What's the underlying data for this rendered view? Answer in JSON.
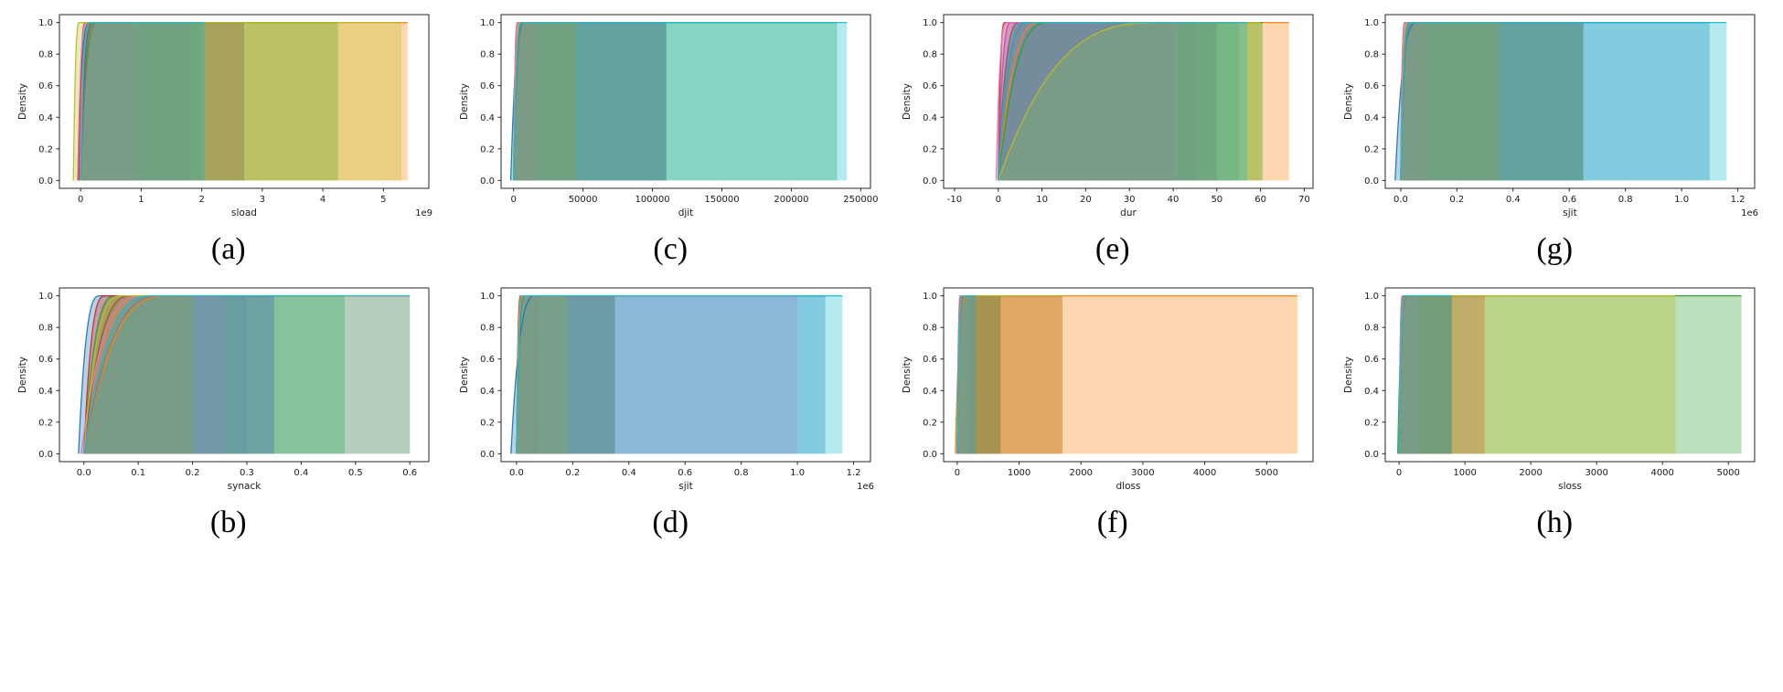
{
  "figure": {
    "background": "#ffffff",
    "spine_color": "#262626",
    "text_color": "#1a1a1a"
  },
  "palette": [
    "#1f77b4",
    "#ff7f0e",
    "#2ca02c",
    "#d62728",
    "#9467bd",
    "#8c564b",
    "#e377c2",
    "#7f7f7f",
    "#bcbd22",
    "#17becf"
  ],
  "yticks": [
    {
      "v": 0.0,
      "label": "0.0"
    },
    {
      "v": 0.2,
      "label": "0.2"
    },
    {
      "v": 0.4,
      "label": "0.4"
    },
    {
      "v": 0.6,
      "label": "0.6"
    },
    {
      "v": 0.8,
      "label": "0.8"
    },
    {
      "v": 1.0,
      "label": "1.0"
    }
  ],
  "chart_data": [
    {
      "caption": "(a)",
      "type": "area",
      "xlabel": "sload",
      "ylabel": "Density",
      "offset_label": "1e9",
      "xlim": [
        -350000000.0,
        5750000000.0
      ],
      "ylim": [
        0,
        1
      ],
      "xticks": [
        {
          "v": 0,
          "label": "0"
        },
        {
          "v": 1000000000.0,
          "label": "1"
        },
        {
          "v": 2000000000.0,
          "label": "2"
        },
        {
          "v": 3000000000.0,
          "label": "3"
        },
        {
          "v": 4000000000.0,
          "label": "4"
        },
        {
          "v": 5000000000.0,
          "label": "5"
        }
      ],
      "series": [
        {
          "color_index": 0,
          "rise": [
            -50000000.0,
            150000000.0
          ],
          "xmax": 2000000000.0
        },
        {
          "color_index": 1,
          "rise": [
            0,
            200000000.0
          ],
          "xmax": 5400000000.0
        },
        {
          "color_index": 2,
          "rise": [
            0,
            250000000.0
          ],
          "xmax": 4250000000.0
        },
        {
          "color_index": 3,
          "rise": [
            -30000000.0,
            80000000.0
          ],
          "xmax": 850000000.0
        },
        {
          "color_index": 4,
          "rise": [
            0,
            150000000.0
          ],
          "xmax": 1800000000.0
        },
        {
          "color_index": 5,
          "rise": [
            0,
            200000000.0
          ],
          "xmax": 2700000000.0
        },
        {
          "color_index": 6,
          "rise": [
            -50000000.0,
            100000000.0
          ],
          "xmax": 900000000.0
        },
        {
          "color_index": 7,
          "rise": [
            0,
            300000000.0
          ],
          "xmax": 2700000000.0
        },
        {
          "color_index": 8,
          "rise": [
            -120000000.0,
            -20000000.0
          ],
          "xmax": 5300000000.0
        },
        {
          "color_index": 9,
          "rise": [
            0,
            150000000.0
          ],
          "xmax": 2050000000.0
        }
      ]
    },
    {
      "caption": "(c)",
      "type": "area",
      "xlabel": "djit",
      "ylabel": "Density",
      "offset_label": null,
      "xlim": [
        -9000,
        257000
      ],
      "ylim": [
        0,
        1
      ],
      "xticks": [
        {
          "v": 0,
          "label": "0"
        },
        {
          "v": 50000,
          "label": "50000"
        },
        {
          "v": 100000,
          "label": "100000"
        },
        {
          "v": 150000,
          "label": "150000"
        },
        {
          "v": 200000,
          "label": "200000"
        },
        {
          "v": 250000,
          "label": "250000"
        }
      ],
      "series": [
        {
          "color_index": 0,
          "rise": [
            -2000,
            8000
          ],
          "xmax": 110000
        },
        {
          "color_index": 1,
          "rise": [
            0,
            5000
          ],
          "xmax": 45000
        },
        {
          "color_index": 2,
          "rise": [
            0,
            6000
          ],
          "xmax": 233000
        },
        {
          "color_index": 3,
          "rise": [
            0,
            3000
          ],
          "xmax": 18000
        },
        {
          "color_index": 4,
          "rise": [
            0,
            5000
          ],
          "xmax": 45000
        },
        {
          "color_index": 5,
          "rise": [
            0,
            6000
          ],
          "xmax": 110000
        },
        {
          "color_index": 6,
          "rise": [
            0,
            3000
          ],
          "xmax": 18000
        },
        {
          "color_index": 7,
          "rise": [
            0,
            8000
          ],
          "xmax": 110000
        },
        {
          "color_index": 8,
          "rise": [
            0,
            5000
          ],
          "xmax": 45000
        },
        {
          "color_index": 9,
          "rise": [
            0,
            6000
          ],
          "xmax": 240000
        }
      ]
    },
    {
      "caption": "(e)",
      "type": "area",
      "xlabel": "dur",
      "ylabel": "Density",
      "offset_label": null,
      "xlim": [
        -12.5,
        72
      ],
      "ylim": [
        0,
        1
      ],
      "xticks": [
        {
          "v": -10,
          "label": "-10"
        },
        {
          "v": 0,
          "label": "0"
        },
        {
          "v": 10,
          "label": "10"
        },
        {
          "v": 20,
          "label": "20"
        },
        {
          "v": 30,
          "label": "30"
        },
        {
          "v": 40,
          "label": "40"
        },
        {
          "v": 50,
          "label": "50"
        },
        {
          "v": 60,
          "label": "60"
        },
        {
          "v": 70,
          "label": "70"
        }
      ],
      "series": [
        {
          "color_index": 0,
          "rise": [
            0,
            6
          ],
          "xmax": 55
        },
        {
          "color_index": 1,
          "rise": [
            0,
            10
          ],
          "xmax": 66.5
        },
        {
          "color_index": 2,
          "rise": [
            0,
            12
          ],
          "xmax": 60.5
        },
        {
          "color_index": 3,
          "rise": [
            0,
            1.5
          ],
          "xmax": 40
        },
        {
          "color_index": 4,
          "rise": [
            0,
            3
          ],
          "xmax": 45
        },
        {
          "color_index": 5,
          "rise": [
            0,
            5
          ],
          "xmax": 50
        },
        {
          "color_index": 6,
          "rise": [
            -0.5,
            2
          ],
          "xmax": 41
        },
        {
          "color_index": 7,
          "rise": [
            0,
            7
          ],
          "xmax": 50
        },
        {
          "color_index": 8,
          "rise": [
            0,
            38
          ],
          "xmax": 60
        },
        {
          "color_index": 9,
          "rise": [
            0,
            6
          ],
          "xmax": 57
        }
      ]
    },
    {
      "caption": "(g)",
      "type": "area",
      "xlabel": "sjit",
      "ylabel": "Density",
      "offset_label": "1e6",
      "xlim": [
        -55000.0,
        1260000.0
      ],
      "ylim": [
        0,
        1
      ],
      "xticks": [
        {
          "v": 0,
          "label": "0.0"
        },
        {
          "v": 200000.0,
          "label": "0.2"
        },
        {
          "v": 400000.0,
          "label": "0.4"
        },
        {
          "v": 600000.0,
          "label": "0.6"
        },
        {
          "v": 800000.0,
          "label": "0.8"
        },
        {
          "v": 1000000.0,
          "label": "1.0"
        },
        {
          "v": 1200000.0,
          "label": "1.2"
        }
      ],
      "series": [
        {
          "color_index": 0,
          "rise": [
            -20000.0,
            60000.0
          ],
          "xmax": 1100000.0
        },
        {
          "color_index": 1,
          "rise": [
            0,
            25000.0
          ],
          "xmax": 350000.0
        },
        {
          "color_index": 2,
          "rise": [
            0,
            30000.0
          ],
          "xmax": 650000.0
        },
        {
          "color_index": 3,
          "rise": [
            0,
            15000.0
          ],
          "xmax": 100000.0
        },
        {
          "color_index": 4,
          "rise": [
            0,
            25000.0
          ],
          "xmax": 350000.0
        },
        {
          "color_index": 5,
          "rise": [
            0,
            30000.0
          ],
          "xmax": 650000.0
        },
        {
          "color_index": 6,
          "rise": [
            0,
            15000.0
          ],
          "xmax": 100000.0
        },
        {
          "color_index": 7,
          "rise": [
            0,
            40000.0
          ],
          "xmax": 650000.0
        },
        {
          "color_index": 8,
          "rise": [
            0,
            25000.0
          ],
          "xmax": 350000.0
        },
        {
          "color_index": 9,
          "rise": [
            0,
            30000.0
          ],
          "xmax": 1160000.0
        }
      ]
    },
    {
      "caption": "(b)",
      "type": "area",
      "xlabel": "synack",
      "ylabel": "Density",
      "offset_label": null,
      "xlim": [
        -0.045,
        0.635
      ],
      "ylim": [
        0,
        1
      ],
      "xticks": [
        {
          "v": 0.0,
          "label": "0.0"
        },
        {
          "v": 0.1,
          "label": "0.1"
        },
        {
          "v": 0.2,
          "label": "0.2"
        },
        {
          "v": 0.3,
          "label": "0.3"
        },
        {
          "v": 0.4,
          "label": "0.4"
        },
        {
          "v": 0.5,
          "label": "0.5"
        },
        {
          "v": 0.6,
          "label": "0.6"
        }
      ],
      "series": [
        {
          "color_index": 0,
          "rise": [
            -0.01,
            0.03
          ],
          "xmax": 0.35
        },
        {
          "color_index": 1,
          "rise": [
            0,
            0.16
          ],
          "xmax": 0.6
        },
        {
          "color_index": 2,
          "rise": [
            0,
            0.06
          ],
          "xmax": 0.48
        },
        {
          "color_index": 3,
          "rise": [
            0,
            0.04
          ],
          "xmax": 0.2
        },
        {
          "color_index": 4,
          "rise": [
            0,
            0.13
          ],
          "xmax": 0.35
        },
        {
          "color_index": 5,
          "rise": [
            0,
            0.09
          ],
          "xmax": 0.2
        },
        {
          "color_index": 6,
          "rise": [
            -0.005,
            0.11
          ],
          "xmax": 0.26
        },
        {
          "color_index": 7,
          "rise": [
            0,
            0.15
          ],
          "xmax": 0.3
        },
        {
          "color_index": 8,
          "rise": [
            0,
            0.07
          ],
          "xmax": 0.2
        },
        {
          "color_index": 9,
          "rise": [
            0,
            0.13
          ],
          "xmax": 0.6
        }
      ]
    },
    {
      "caption": "(d)",
      "type": "area",
      "xlabel": "sjit",
      "ylabel": "Density",
      "offset_label": "1e6",
      "xlim": [
        -55000.0,
        1260000.0
      ],
      "ylim": [
        0,
        1
      ],
      "xticks": [
        {
          "v": 0,
          "label": "0.0"
        },
        {
          "v": 200000.0,
          "label": "0.2"
        },
        {
          "v": 400000.0,
          "label": "0.4"
        },
        {
          "v": 600000.0,
          "label": "0.6"
        },
        {
          "v": 800000.0,
          "label": "0.8"
        },
        {
          "v": 1000000.0,
          "label": "1.0"
        },
        {
          "v": 1200000.0,
          "label": "1.2"
        }
      ],
      "series": [
        {
          "color_index": 0,
          "rise": [
            -20000.0,
            70000.0
          ],
          "xmax": 1100000.0
        },
        {
          "color_index": 1,
          "rise": [
            0,
            20000.0
          ],
          "xmax": 180000.0
        },
        {
          "color_index": 2,
          "rise": [
            0,
            30000.0
          ],
          "xmax": 350000.0
        },
        {
          "color_index": 3,
          "rise": [
            0,
            15000.0
          ],
          "xmax": 80000.0
        },
        {
          "color_index": 4,
          "rise": [
            0,
            20000.0
          ],
          "xmax": 180000.0
        },
        {
          "color_index": 5,
          "rise": [
            0,
            25000.0
          ],
          "xmax": 350000.0
        },
        {
          "color_index": 6,
          "rise": [
            0,
            20000.0
          ],
          "xmax": 1000000.0
        },
        {
          "color_index": 7,
          "rise": [
            0,
            30000.0
          ],
          "xmax": 350000.0
        },
        {
          "color_index": 8,
          "rise": [
            0,
            20000.0
          ],
          "xmax": 180000.0
        },
        {
          "color_index": 9,
          "rise": [
            0,
            25000.0
          ],
          "xmax": 1160000.0
        }
      ]
    },
    {
      "caption": "(f)",
      "type": "area",
      "xlabel": "dloss",
      "ylabel": "Density",
      "offset_label": null,
      "xlim": [
        -220,
        5750
      ],
      "ylim": [
        0,
        1
      ],
      "xticks": [
        {
          "v": 0,
          "label": "0"
        },
        {
          "v": 1000,
          "label": "1000"
        },
        {
          "v": 2000,
          "label": "2000"
        },
        {
          "v": 3000,
          "label": "3000"
        },
        {
          "v": 4000,
          "label": "4000"
        },
        {
          "v": 5000,
          "label": "5000"
        }
      ],
      "series": [
        {
          "color_index": 0,
          "rise": [
            0,
            80
          ],
          "xmax": 300
        },
        {
          "color_index": 1,
          "rise": [
            -30,
            150
          ],
          "xmax": 5500
        },
        {
          "color_index": 2,
          "rise": [
            0,
            100
          ],
          "xmax": 700
        },
        {
          "color_index": 3,
          "rise": [
            0,
            60
          ],
          "xmax": 1700
        },
        {
          "color_index": 4,
          "rise": [
            0,
            80
          ],
          "xmax": 300
        },
        {
          "color_index": 5,
          "rise": [
            0,
            100
          ],
          "xmax": 700
        },
        {
          "color_index": 6,
          "rise": [
            0,
            50
          ],
          "xmax": 200
        },
        {
          "color_index": 7,
          "rise": [
            0,
            120
          ],
          "xmax": 700
        },
        {
          "color_index": 8,
          "rise": [
            0,
            90
          ],
          "xmax": 1700
        },
        {
          "color_index": 9,
          "rise": [
            0,
            80
          ],
          "xmax": 300
        }
      ]
    },
    {
      "caption": "(h)",
      "type": "area",
      "xlabel": "sloss",
      "ylabel": "Density",
      "offset_label": null,
      "xlim": [
        -210,
        5400
      ],
      "ylim": [
        0,
        1
      ],
      "xticks": [
        {
          "v": 0,
          "label": "0"
        },
        {
          "v": 1000,
          "label": "1000"
        },
        {
          "v": 2000,
          "label": "2000"
        },
        {
          "v": 3000,
          "label": "3000"
        },
        {
          "v": 4000,
          "label": "4000"
        },
        {
          "v": 5000,
          "label": "5000"
        }
      ],
      "series": [
        {
          "color_index": 0,
          "rise": [
            0,
            100
          ],
          "xmax": 800
        },
        {
          "color_index": 1,
          "rise": [
            0,
            90
          ],
          "xmax": 800
        },
        {
          "color_index": 2,
          "rise": [
            -20,
            120
          ],
          "xmax": 5200
        },
        {
          "color_index": 3,
          "rise": [
            0,
            70
          ],
          "xmax": 1300
        },
        {
          "color_index": 4,
          "rise": [
            0,
            60
          ],
          "xmax": 300
        },
        {
          "color_index": 5,
          "rise": [
            0,
            100
          ],
          "xmax": 800
        },
        {
          "color_index": 6,
          "rise": [
            0,
            50
          ],
          "xmax": 300
        },
        {
          "color_index": 7,
          "rise": [
            0,
            120
          ],
          "xmax": 800
        },
        {
          "color_index": 8,
          "rise": [
            0,
            90
          ],
          "xmax": 4200
        },
        {
          "color_index": 9,
          "rise": [
            0,
            80
          ],
          "xmax": 800
        }
      ]
    }
  ]
}
